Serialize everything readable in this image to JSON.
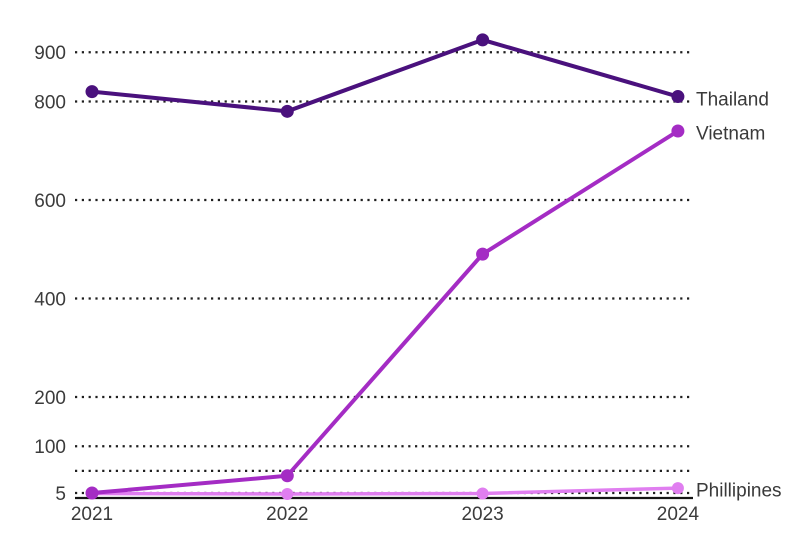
{
  "chart_data": {
    "type": "line",
    "title": "",
    "xlabel": "",
    "ylabel": "",
    "categories": [
      "2021",
      "2022",
      "2023",
      "2024"
    ],
    "series": [
      {
        "name": "Thailand",
        "color": "#4a117d",
        "values": [
          820,
          780,
          925,
          810
        ]
      },
      {
        "name": "Vietnam",
        "color": "#a42cc4",
        "values": [
          5,
          40,
          490,
          740
        ]
      },
      {
        "name": "Phillipines",
        "color": "#e07ef0",
        "values": [
          4,
          3,
          4,
          15
        ]
      }
    ],
    "yticks": [
      {
        "value": 5,
        "label": "5"
      },
      {
        "value": 50,
        "label": ""
      },
      {
        "value": 100,
        "label": "100"
      },
      {
        "value": 200,
        "label": "200"
      },
      {
        "value": 400,
        "label": "400"
      },
      {
        "value": 600,
        "label": "600"
      },
      {
        "value": 800,
        "label": "800"
      },
      {
        "value": 900,
        "label": "900"
      },
      {
        "value": 0,
        "label": ""
      }
    ],
    "ylim": [
      0,
      940
    ],
    "grid": "horizontal-dotted",
    "legend_position": "end-of-line-labels",
    "background": "#ffffff",
    "text_color": "#3b3b3b",
    "gridline_color": "#1f1f1f"
  }
}
